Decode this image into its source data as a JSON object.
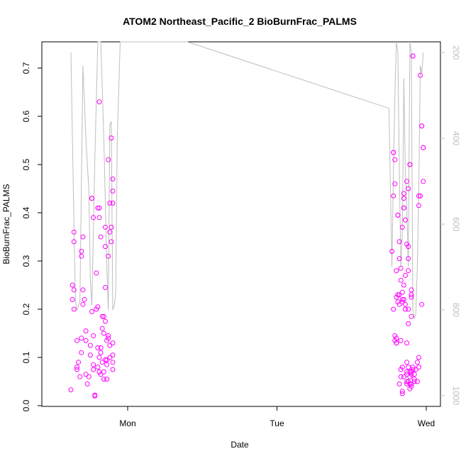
{
  "chart_data": {
    "type": "scatter",
    "title": "ATOM2 Northeast_Pacific_2 BioBurnFrac_PALMS",
    "xlabel": "Date",
    "ylabel": "BioBurnFrac_PALMS",
    "x_ticks": [
      {
        "label": "Mon",
        "value": 1.0
      },
      {
        "label": "Tue",
        "value": 2.0
      },
      {
        "label": "Wed",
        "value": 3.0
      }
    ],
    "ylim": [
      0,
      0.75
    ],
    "y_ticks": [
      0.0,
      0.1,
      0.2,
      0.3,
      0.4,
      0.5,
      0.6,
      0.7
    ],
    "right_axis": {
      "color": "#bebebe",
      "range_top_to_bottom": [
        175,
        1025
      ],
      "ticks": [
        "200",
        "400",
        "600",
        "800",
        "1000"
      ],
      "tick_values": [
        200,
        400,
        600,
        800,
        1000
      ]
    },
    "colors": {
      "points": "#ff00ff",
      "line": "#bebebe",
      "frame": "#000000"
    },
    "series": [
      {
        "marker": "circle",
        "points": [
          [
            0.62,
            0.033
          ],
          [
            0.64,
            0.2
          ],
          [
            0.63,
            0.22
          ],
          [
            0.64,
            0.24
          ],
          [
            0.63,
            0.25
          ],
          [
            0.64,
            0.34
          ],
          [
            0.64,
            0.36
          ],
          [
            0.66,
            0.075
          ],
          [
            0.66,
            0.08
          ],
          [
            0.67,
            0.09
          ],
          [
            0.66,
            0.135
          ],
          [
            0.69,
            0.11
          ],
          [
            0.69,
            0.14
          ],
          [
            0.69,
            0.31
          ],
          [
            0.69,
            0.32
          ],
          [
            0.7,
            0.24
          ],
          [
            0.7,
            0.35
          ],
          [
            0.68,
            0.06
          ],
          [
            0.7,
            0.21
          ],
          [
            0.71,
            0.22
          ],
          [
            0.72,
            0.135
          ],
          [
            0.72,
            0.155
          ],
          [
            0.73,
            0.045
          ],
          [
            0.72,
            0.065
          ],
          [
            0.74,
            0.06
          ],
          [
            0.75,
            0.125
          ],
          [
            0.75,
            0.105
          ],
          [
            0.76,
            0.195
          ],
          [
            0.76,
            0.43
          ],
          [
            0.76,
            0.43
          ],
          [
            0.77,
            0.39
          ],
          [
            0.77,
            0.075
          ],
          [
            0.77,
            0.085
          ],
          [
            0.78,
            0.022
          ],
          [
            0.78,
            0.02
          ],
          [
            0.77,
            0.145
          ],
          [
            0.79,
            0.2
          ],
          [
            0.79,
            0.275
          ],
          [
            0.8,
            0.205
          ],
          [
            0.8,
            0.08
          ],
          [
            0.81,
            0.07
          ],
          [
            0.81,
            0.1
          ],
          [
            0.8,
            0.12
          ],
          [
            0.8,
            0.41
          ],
          [
            0.81,
            0.41
          ],
          [
            0.81,
            0.39
          ],
          [
            0.81,
            0.63
          ],
          [
            0.82,
            0.12
          ],
          [
            0.82,
            0.35
          ],
          [
            0.82,
            0.065
          ],
          [
            0.82,
            0.11
          ],
          [
            0.83,
            0.09
          ],
          [
            0.83,
            0.16
          ],
          [
            0.83,
            0.185
          ],
          [
            0.84,
            0.185
          ],
          [
            0.84,
            0.07
          ],
          [
            0.84,
            0.055
          ],
          [
            0.84,
            0.15
          ],
          [
            0.85,
            0.095
          ],
          [
            0.85,
            0.175
          ],
          [
            0.85,
            0.245
          ],
          [
            0.85,
            0.33
          ],
          [
            0.85,
            0.37
          ],
          [
            0.86,
            0.135
          ],
          [
            0.86,
            0.085
          ],
          [
            0.86,
            0.095
          ],
          [
            0.86,
            0.055
          ],
          [
            0.87,
            0.145
          ],
          [
            0.87,
            0.14
          ],
          [
            0.87,
            0.31
          ],
          [
            0.87,
            0.51
          ],
          [
            0.88,
            0.1
          ],
          [
            0.88,
            0.125
          ],
          [
            0.88,
            0.36
          ],
          [
            0.88,
            0.42
          ],
          [
            0.89,
            0.555
          ],
          [
            0.89,
            0.34
          ],
          [
            0.89,
            0.37
          ],
          [
            0.9,
            0.42
          ],
          [
            0.9,
            0.445
          ],
          [
            0.9,
            0.47
          ],
          [
            0.9,
            0.105
          ],
          [
            0.9,
            0.075
          ],
          [
            0.9,
            0.13
          ],
          [
            0.9,
            0.09
          ],
          [
            2.77,
            0.32
          ],
          [
            2.78,
            0.435
          ],
          [
            2.78,
            0.525
          ],
          [
            2.78,
            0.525
          ],
          [
            2.79,
            0.51
          ],
          [
            2.79,
            0.46
          ],
          [
            2.78,
            0.2
          ],
          [
            2.79,
            0.145
          ],
          [
            2.79,
            0.135
          ],
          [
            2.8,
            0.14
          ],
          [
            2.8,
            0.13
          ],
          [
            2.8,
            0.13
          ],
          [
            2.8,
            0.225
          ],
          [
            2.8,
            0.28
          ],
          [
            2.81,
            0.215
          ],
          [
            2.81,
            0.23
          ],
          [
            2.81,
            0.395
          ],
          [
            2.81,
            0.395
          ],
          [
            2.82,
            0.305
          ],
          [
            2.82,
            0.34
          ],
          [
            2.82,
            0.23
          ],
          [
            2.82,
            0.21
          ],
          [
            2.82,
            0.045
          ],
          [
            2.83,
            0.075
          ],
          [
            2.83,
            0.06
          ],
          [
            2.83,
            0.135
          ],
          [
            2.83,
            0.26
          ],
          [
            2.83,
            0.285
          ],
          [
            2.84,
            0.37
          ],
          [
            2.84,
            0.22
          ],
          [
            2.84,
            0.235
          ],
          [
            2.84,
            0.215
          ],
          [
            2.84,
            0.08
          ],
          [
            2.84,
            0.03
          ],
          [
            2.84,
            0.025
          ],
          [
            2.85,
            0.06
          ],
          [
            2.85,
            0.43
          ],
          [
            2.85,
            0.41
          ],
          [
            2.85,
            0.41
          ],
          [
            2.85,
            0.44
          ],
          [
            2.85,
            0.22
          ],
          [
            2.85,
            0.25
          ],
          [
            2.86,
            0.21
          ],
          [
            2.86,
            0.2
          ],
          [
            2.86,
            0.27
          ],
          [
            2.86,
            0.385
          ],
          [
            2.86,
            0.385
          ],
          [
            2.87,
            0.335
          ],
          [
            2.87,
            0.13
          ],
          [
            2.87,
            0.05
          ],
          [
            2.87,
            0.045
          ],
          [
            2.87,
            0.065
          ],
          [
            2.87,
            0.07
          ],
          [
            2.87,
            0.09
          ],
          [
            2.87,
            0.465
          ],
          [
            2.88,
            0.45
          ],
          [
            2.88,
            0.305
          ],
          [
            2.88,
            0.28
          ],
          [
            2.88,
            0.33
          ],
          [
            2.88,
            0.2
          ],
          [
            2.88,
            0.17
          ],
          [
            2.88,
            0.08
          ],
          [
            2.88,
            0.05
          ],
          [
            2.89,
            0.5
          ],
          [
            2.89,
            0.5
          ],
          [
            2.89,
            0.045
          ],
          [
            2.89,
            0.06
          ],
          [
            2.89,
            0.035
          ],
          [
            2.89,
            0.07
          ],
          [
            2.9,
            0.185
          ],
          [
            2.9,
            0.225
          ],
          [
            2.9,
            0.23
          ],
          [
            2.9,
            0.24
          ],
          [
            2.9,
            0.065
          ],
          [
            2.9,
            0.07
          ],
          [
            2.9,
            0.04
          ],
          [
            2.9,
            0.045
          ],
          [
            2.91,
            0.725
          ],
          [
            2.91,
            0.725
          ],
          [
            2.91,
            0.08
          ],
          [
            2.91,
            0.075
          ],
          [
            2.92,
            0.05
          ],
          [
            2.92,
            0.055
          ],
          [
            2.92,
            0.065
          ],
          [
            2.93,
            0.075
          ],
          [
            2.94,
            0.09
          ],
          [
            2.94,
            0.05
          ],
          [
            2.95,
            0.1
          ],
          [
            2.95,
            0.08
          ],
          [
            2.95,
            0.435
          ],
          [
            2.95,
            0.415
          ],
          [
            2.96,
            0.435
          ],
          [
            2.96,
            0.685
          ],
          [
            2.97,
            0.21
          ],
          [
            2.97,
            0.58
          ],
          [
            2.97,
            0.58
          ],
          [
            2.98,
            0.535
          ],
          [
            2.98,
            0.535
          ],
          [
            2.98,
            0.465
          ]
        ]
      },
      {
        "axis": "right",
        "line": [
          [
            0.62,
            200
          ],
          [
            0.63,
            400
          ],
          [
            0.64,
            600
          ],
          [
            0.65,
            780
          ],
          [
            0.66,
            800
          ],
          [
            0.67,
            790
          ],
          [
            0.68,
            780
          ],
          [
            0.7,
            230
          ],
          [
            0.72,
            400
          ],
          [
            0.74,
            520
          ],
          [
            0.75,
            730
          ],
          [
            0.76,
            790
          ],
          [
            0.78,
            450
          ],
          [
            0.8,
            175
          ],
          [
            0.82,
            175
          ],
          [
            0.84,
            400
          ],
          [
            0.86,
            700
          ],
          [
            0.87,
            800
          ],
          [
            0.88,
            370
          ],
          [
            0.89,
            360
          ],
          [
            0.9,
            800
          ],
          [
            0.91,
            790
          ],
          [
            0.92,
            760
          ],
          [
            0.93,
            400
          ],
          [
            0.95,
            175
          ],
          [
            1.05,
            175
          ],
          [
            1.4,
            175
          ],
          [
            2.75,
            330
          ],
          [
            2.76,
            520
          ],
          [
            2.77,
            700
          ],
          [
            2.78,
            480
          ],
          [
            2.79,
            300
          ],
          [
            2.8,
            175
          ],
          [
            2.81,
            200
          ],
          [
            2.82,
            480
          ],
          [
            2.83,
            700
          ],
          [
            2.84,
            620
          ],
          [
            2.85,
            260
          ],
          [
            2.86,
            480
          ],
          [
            2.87,
            560
          ],
          [
            2.88,
            700
          ],
          [
            2.89,
            175
          ],
          [
            2.9,
            200
          ],
          [
            2.91,
            800
          ],
          [
            2.92,
            820
          ],
          [
            2.93,
            810
          ],
          [
            2.94,
            700
          ],
          [
            2.95,
            520
          ],
          [
            2.96,
            230
          ],
          [
            2.97,
            250
          ],
          [
            2.98,
            200
          ]
        ]
      }
    ]
  }
}
